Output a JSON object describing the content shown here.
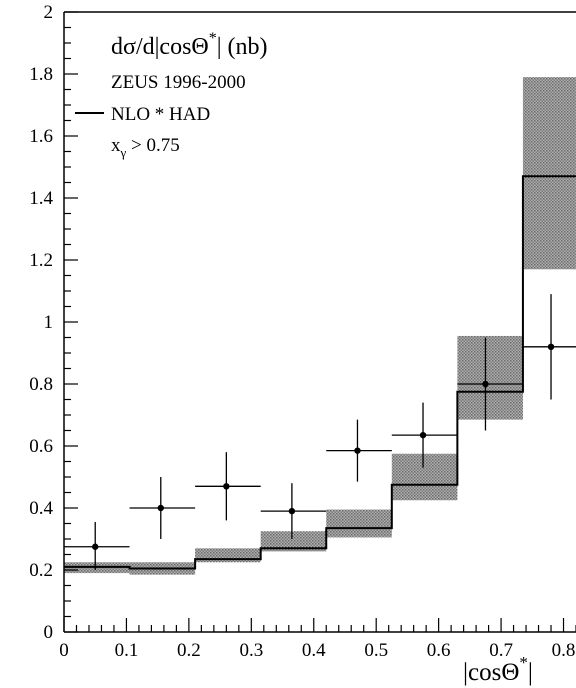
{
  "chart_data": {
    "type": "line",
    "title": "dσ/d|cosΘ*| (nb)",
    "title_main": "dσ/d|cosΘ",
    "title_sup": "*",
    "title_units": "| (nb)",
    "xlabel": "|cosΘ*|",
    "xlabel_main": "|cosΘ",
    "xlabel_sup": "*",
    "xlabel_end": "|",
    "xlim": [
      0,
      0.82
    ],
    "ylim": [
      0,
      2
    ],
    "grid": false,
    "x_ticks": [
      "0",
      "0.1",
      "0.2",
      "0.3",
      "0.4",
      "0.5",
      "0.6",
      "0.7",
      "0.8"
    ],
    "y_ticks": [
      "0",
      "0.2",
      "0.4",
      "0.6",
      "0.8",
      "1",
      "1.2",
      "1.4",
      "1.6",
      "1.8",
      "2"
    ],
    "legend": {
      "placement": "top-left",
      "entries": [
        "ZEUS 1996-2000",
        "NLO * HAD"
      ],
      "cut_main": "x",
      "cut_sub": "γ",
      "cut_rest": " > 0.75"
    },
    "bin_edges": [
      0,
      0.105,
      0.21,
      0.315,
      0.42,
      0.525,
      0.63,
      0.735,
      0.84
    ],
    "series": [
      {
        "name": "ZEUS 1996-2000",
        "kind": "points",
        "x": [
          0.05,
          0.155,
          0.26,
          0.365,
          0.47,
          0.575,
          0.675,
          0.78
        ],
        "y": [
          0.275,
          0.4,
          0.47,
          0.39,
          0.585,
          0.635,
          0.8,
          0.92
        ],
        "y_err_up": [
          0.08,
          0.1,
          0.11,
          0.09,
          0.1,
          0.105,
          0.15,
          0.17
        ],
        "y_err_down": [
          0.075,
          0.1,
          0.11,
          0.09,
          0.1,
          0.105,
          0.15,
          0.17
        ]
      },
      {
        "name": "NLO * HAD",
        "kind": "step",
        "y": [
          0.21,
          0.205,
          0.235,
          0.27,
          0.335,
          0.475,
          0.775,
          1.47
        ],
        "band_low": [
          0.19,
          0.185,
          0.225,
          0.26,
          0.305,
          0.425,
          0.685,
          1.17
        ],
        "band_high": [
          0.225,
          0.225,
          0.27,
          0.325,
          0.395,
          0.575,
          0.955,
          1.79
        ]
      }
    ]
  }
}
